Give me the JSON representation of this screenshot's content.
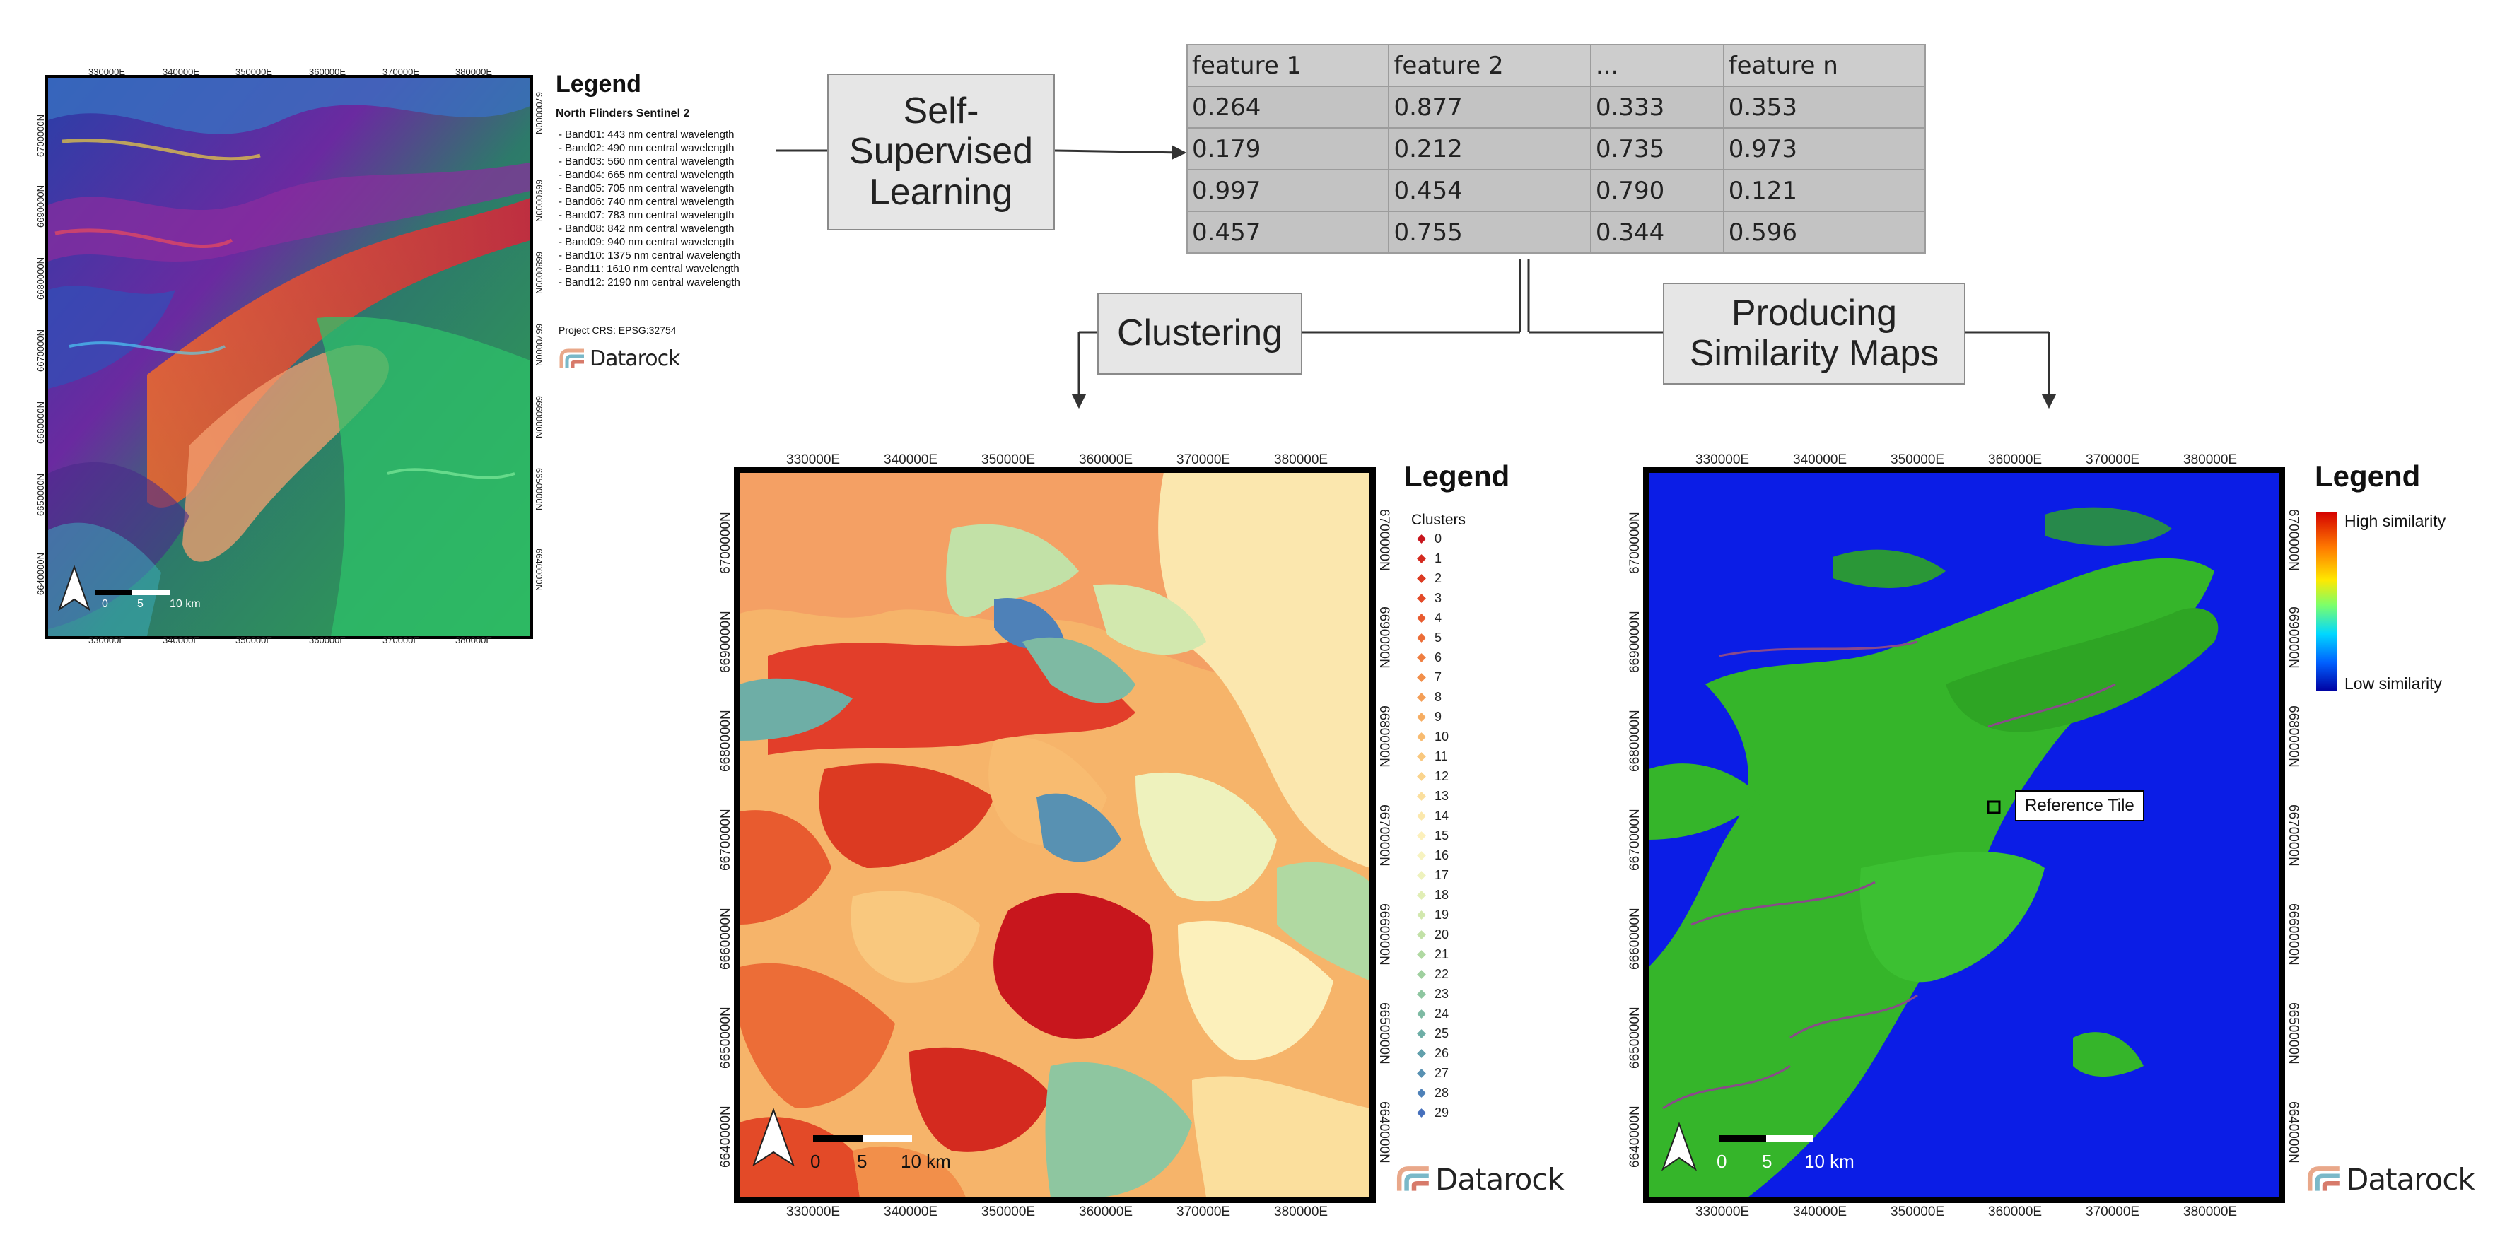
{
  "flow": {
    "ssl_label": "Self-\nSupervised\nLearning",
    "clustering_label": "Clustering",
    "similarity_label": "Producing\nSimilarity Maps"
  },
  "feature_table": {
    "headers": [
      "feature 1",
      "feature 2",
      "...",
      "feature n"
    ],
    "rows": [
      [
        "0.264",
        "0.877",
        "0.333",
        "0.353"
      ],
      [
        "0.179",
        "0.212",
        "0.735",
        "0.973"
      ],
      [
        "0.997",
        "0.454",
        "0.790",
        "0.121"
      ],
      [
        "0.457",
        "0.755",
        "0.344",
        "0.596"
      ]
    ]
  },
  "map_common": {
    "x_ticks": [
      "330000E",
      "340000E",
      "350000E",
      "360000E",
      "370000E",
      "380000E"
    ],
    "y_ticks_left": [
      "6700000N",
      "6690000N",
      "6680000N",
      "6670000N",
      "6660000N",
      "6650000N",
      "6640000N"
    ],
    "y_ticks_right": [
      "6700000N",
      "6690000N",
      "6680000N",
      "6670000N",
      "6660000N",
      "6650000N",
      "6640000N"
    ],
    "scale_labels": [
      "0",
      "5",
      "10 km"
    ]
  },
  "sentinel_legend": {
    "title": "Legend",
    "subtitle": "North Flinders Sentinel 2",
    "bands": [
      "- Band01: 443 nm central wavelength",
      "- Band02: 490 nm central wavelength",
      "- Band03: 560 nm central wavelength",
      "- Band04: 665 nm central wavelength",
      "- Band05: 705 nm central wavelength",
      "- Band06: 740 nm central wavelength",
      "- Band07: 783 nm central wavelength",
      "- Band08: 842 nm central wavelength",
      "- Band09: 940 nm central wavelength",
      "- Band10: 1375 nm central wavelength",
      "- Band11: 1610 nm central wavelength",
      "- Band12: 2190 nm central wavelength"
    ],
    "crs": "Project CRS: EPSG:32754"
  },
  "cluster_legend": {
    "title": "Legend",
    "subtitle": "Clusters",
    "items": [
      "0",
      "1",
      "2",
      "3",
      "4",
      "5",
      "6",
      "7",
      "8",
      "9",
      "10",
      "11",
      "12",
      "13",
      "14",
      "15",
      "16",
      "17",
      "18",
      "19",
      "20",
      "21",
      "22",
      "23",
      "24",
      "25",
      "26",
      "27",
      "28",
      "29"
    ],
    "colors": [
      "#c8161d",
      "#d42a1f",
      "#dc3a22",
      "#e34a28",
      "#e85b2f",
      "#ec6d37",
      "#ef7e40",
      "#f28f4a",
      "#f49e56",
      "#f6ad62",
      "#f8bb70",
      "#f9c87e",
      "#fad48d",
      "#fbdf9d",
      "#fbe8ac",
      "#fcf0bb",
      "#f7f3c0",
      "#eef2bd",
      "#e1eeb5",
      "#d2e8ae",
      "#c2e1a7",
      "#b0d9a2",
      "#9fd09f",
      "#8ec6a0",
      "#7ebaa3",
      "#6eaea6",
      "#62a0ac",
      "#5891b2",
      "#4e81b8",
      "#4670bc"
    ]
  },
  "similarity_legend": {
    "title": "Legend",
    "high_label": "High similarity",
    "low_label": "Low similarity",
    "reference_label": "Reference Tile"
  },
  "logo_text": "Datarock",
  "colors": {
    "box_fill": "#e6e6e6",
    "table_fill": "#c3c3c3",
    "similarity_bg": "#0b1de6",
    "similarity_green": "#35b52a"
  }
}
